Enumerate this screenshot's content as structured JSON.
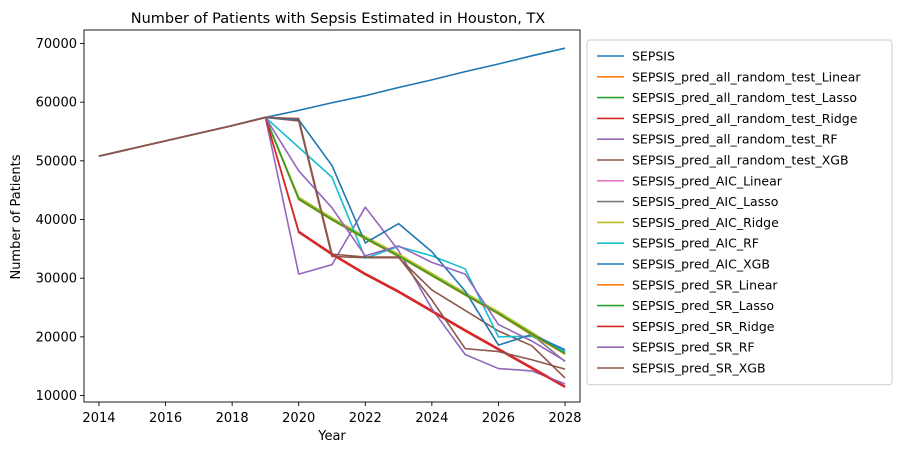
{
  "chart_data": {
    "type": "line",
    "title": "Number of Patients with Sepsis Estimated in Houston, TX",
    "xlabel": "Year",
    "ylabel": "Number of Patients",
    "xlim": [
      2013.55,
      2028.45
    ],
    "ylim": [
      8900,
      72300
    ],
    "xticks": [
      2014,
      2016,
      2018,
      2020,
      2022,
      2024,
      2026,
      2028
    ],
    "yticks": [
      10000,
      20000,
      30000,
      40000,
      50000,
      60000,
      70000
    ],
    "legend_position": "outside-right",
    "x": [
      2014,
      2015,
      2016,
      2017,
      2018,
      2019,
      2020,
      2021,
      2022,
      2023,
      2024,
      2025,
      2026,
      2027,
      2028
    ],
    "series": [
      {
        "name": "SEPSIS",
        "color": "#1f77b4",
        "values": [
          50800,
          52100,
          53400,
          54700,
          56000,
          57400,
          58600,
          59900,
          61100,
          62500,
          63800,
          65200,
          66500,
          67900,
          69200
        ]
      },
      {
        "name": "SEPSIS_pred_all_random_test_Linear",
        "color": "#ff7f0e",
        "values": [
          50800,
          52100,
          53400,
          54700,
          56000,
          57400,
          43500,
          40000,
          36800,
          33800,
          30500,
          27200,
          24000,
          20500,
          17300
        ]
      },
      {
        "name": "SEPSIS_pred_all_random_test_Lasso",
        "color": "#2ca02c",
        "values": [
          50800,
          52100,
          53400,
          54700,
          56000,
          57400,
          43600,
          40100,
          36900,
          33900,
          30600,
          27300,
          24100,
          20600,
          17400
        ]
      },
      {
        "name": "SEPSIS_pred_all_random_test_Ridge",
        "color": "#d62728",
        "values": [
          50800,
          52100,
          53400,
          54700,
          56000,
          57400,
          38000,
          34200,
          30800,
          27800,
          24500,
          21200,
          18000,
          14800,
          11600
        ]
      },
      {
        "name": "SEPSIS_pred_all_random_test_RF",
        "color": "#9467bd",
        "values": [
          50800,
          52100,
          53400,
          54700,
          56000,
          57400,
          30700,
          32300,
          42100,
          34700,
          24800,
          17000,
          14600,
          14200,
          12000
        ]
      },
      {
        "name": "SEPSIS_pred_all_random_test_XGB",
        "color": "#8c564b",
        "values": [
          50800,
          52100,
          53400,
          54700,
          56000,
          57400,
          56800,
          33700,
          33500,
          33500,
          28000,
          24500,
          21000,
          18500,
          13000
        ]
      },
      {
        "name": "SEPSIS_pred_AIC_Linear",
        "color": "#e377c2",
        "values": [
          50800,
          52100,
          53400,
          54700,
          56000,
          57400,
          43700,
          40200,
          37000,
          34000,
          30700,
          27400,
          24200,
          20700,
          17500
        ]
      },
      {
        "name": "SEPSIS_pred_AIC_Lasso",
        "color": "#7f7f7f",
        "values": [
          50800,
          52100,
          53400,
          54700,
          56000,
          57400,
          43500,
          40000,
          36800,
          33800,
          30500,
          27200,
          23900,
          20400,
          15800
        ]
      },
      {
        "name": "SEPSIS_pred_AIC_Ridge",
        "color": "#bcbd22",
        "values": [
          50800,
          52100,
          53400,
          54700,
          56000,
          57400,
          43800,
          40300,
          37100,
          34100,
          30800,
          27500,
          24300,
          20800,
          17000
        ]
      },
      {
        "name": "SEPSIS_pred_AIC_RF",
        "color": "#17becf",
        "values": [
          50800,
          52100,
          53400,
          54700,
          56000,
          57400,
          52300,
          47200,
          33400,
          35400,
          33800,
          31600,
          20000,
          20100,
          17500
        ]
      },
      {
        "name": "SEPSIS_pred_AIC_XGB",
        "color": "#1f77b4",
        "values": [
          50800,
          52100,
          53400,
          54700,
          56000,
          57400,
          57000,
          49200,
          36000,
          39300,
          34500,
          27800,
          18600,
          20400,
          17800
        ]
      },
      {
        "name": "SEPSIS_pred_SR_Linear",
        "color": "#ff7f0e",
        "values": [
          50800,
          52100,
          53400,
          54700,
          56000,
          57400,
          43400,
          39900,
          36700,
          33700,
          30400,
          27100,
          23900,
          20300,
          17100
        ]
      },
      {
        "name": "SEPSIS_pred_SR_Lasso",
        "color": "#2ca02c",
        "values": [
          50800,
          52100,
          53400,
          54700,
          56000,
          57400,
          43500,
          40000,
          36800,
          33800,
          30500,
          27200,
          24000,
          20500,
          17200
        ]
      },
      {
        "name": "SEPSIS_pred_SR_Ridge",
        "color": "#d62728",
        "values": [
          50800,
          52100,
          53400,
          54700,
          56000,
          57400,
          37800,
          34000,
          30600,
          27600,
          24300,
          21000,
          17800,
          14600,
          11400
        ]
      },
      {
        "name": "SEPSIS_pred_SR_RF",
        "color": "#9467bd",
        "values": [
          50800,
          52100,
          53400,
          54700,
          56000,
          57400,
          48300,
          42000,
          33800,
          35500,
          32700,
          30700,
          22100,
          19300,
          15900
        ]
      },
      {
        "name": "SEPSIS_pred_SR_XGB",
        "color": "#8c564b",
        "values": [
          50800,
          52100,
          53400,
          54700,
          56000,
          57400,
          57200,
          34100,
          33600,
          33600,
          26300,
          18000,
          17500,
          16100,
          14500
        ]
      }
    ]
  }
}
